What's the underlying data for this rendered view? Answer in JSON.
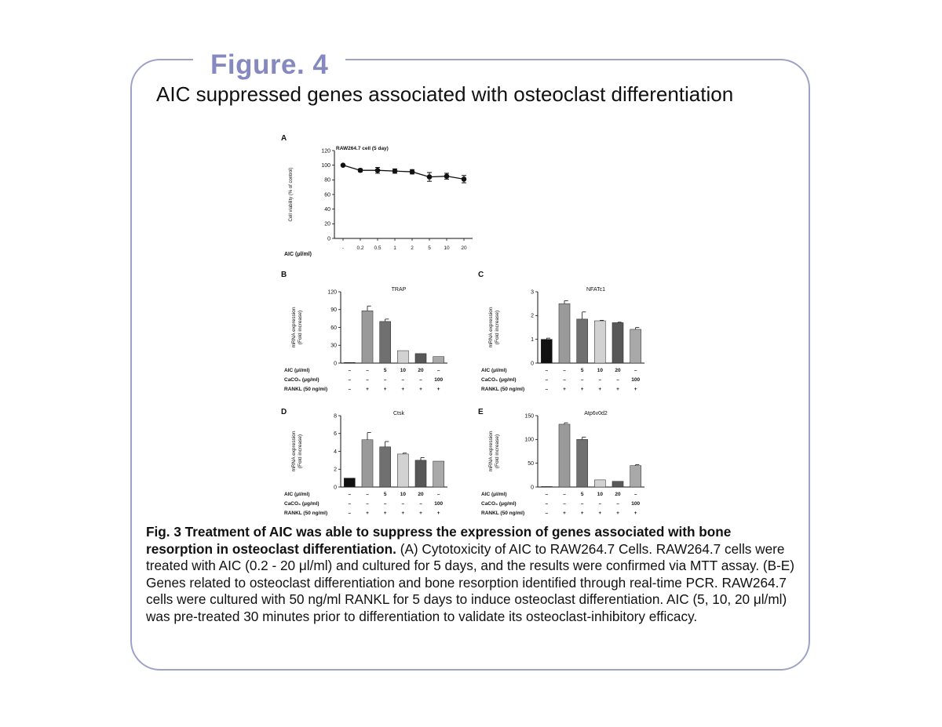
{
  "figure_label": "Figure. 4",
  "slide_title": "AIC suppressed genes associated with osteoclast differentiation",
  "caption": {
    "bold": "Fig. 3 Treatment of AIC was able to suppress the expression of genes associated with bone resorption in osteoclast differentiation.",
    "text": " (A) Cytotoxicity of AIC to RAW264.7 Cells. RAW264.7 cells were treated with AIC (0.2 - 20 μl/ml) and cultured for 5 days, and the results were confirmed via MTT assay. (B-E) Genes related to osteoclast differentiation and bone resorption identified through real-time PCR. RAW264.7 cells were cultured with 50 ng/ml RANKL for 5 days to induce osteoclast differentiation. AIC (5, 10, 20 μl/ml) was pre-treated 30 minutes prior to differentiation to validate its osteoclast-inhibitory efficacy."
  },
  "colors": {
    "frame": "#9da3c8",
    "figure_label": "#8589c0",
    "bar_fills": [
      "#111111",
      "#9a9a9a",
      "#707070",
      "#d2d2d2",
      "#585858",
      "#a9a9a9"
    ]
  },
  "chart_data": [
    {
      "panel": "A",
      "type": "line",
      "title": "RAW264.7 cell (5 day)",
      "ylabel": "Cell viability (% of control)",
      "xlabel": "AIC (μl/ml)",
      "categories": [
        "-",
        "0.2",
        "0.5",
        "1",
        "2",
        "5",
        "10",
        "20"
      ],
      "values": [
        100,
        93,
        93,
        92,
        91,
        84,
        85,
        81
      ],
      "errors": [
        0,
        2,
        4,
        3,
        3,
        6,
        4,
        5
      ],
      "ylim": [
        0,
        120
      ],
      "yticks": [
        0,
        20,
        40,
        60,
        80,
        100,
        120
      ]
    },
    {
      "panel": "B",
      "type": "bar",
      "title": "TRAP",
      "ylabel": [
        "mRNA expression",
        "(Fold increase)"
      ],
      "ylim": [
        0,
        120
      ],
      "yticks": [
        0,
        30,
        60,
        90,
        120
      ],
      "values": [
        1,
        88,
        70,
        21,
        16,
        11
      ],
      "errors": [
        0,
        8,
        4,
        0,
        0,
        0
      ],
      "rows": [
        {
          "label": "AIC (μl/ml)",
          "values": [
            "–",
            "–",
            "5",
            "10",
            "20",
            "–"
          ]
        },
        {
          "label": "CaCO₃ (μg/ml)",
          "values": [
            "–",
            "–",
            "–",
            "–",
            "–",
            "100"
          ]
        },
        {
          "label": "RANKL (50 ng/ml)",
          "values": [
            "–",
            "+",
            "+",
            "+",
            "+",
            "+"
          ]
        }
      ]
    },
    {
      "panel": "C",
      "type": "bar",
      "title": "NFATc1",
      "ylabel": [
        "mRNA expression",
        "(Fold increase)"
      ],
      "ylim": [
        0,
        3
      ],
      "yticks": [
        0,
        1,
        2,
        3
      ],
      "values": [
        1.0,
        2.5,
        1.85,
        1.78,
        1.7,
        1.42
      ],
      "errors": [
        0.05,
        0.12,
        0.3,
        0.02,
        0.02,
        0.08
      ],
      "rows": [
        {
          "label": "AIC (μl/ml)",
          "values": [
            "–",
            "–",
            "5",
            "10",
            "20",
            "–"
          ]
        },
        {
          "label": "CaCO₃ (μg/ml)",
          "values": [
            "–",
            "–",
            "–",
            "–",
            "–",
            "100"
          ]
        },
        {
          "label": "RANKL (50 ng/ml)",
          "values": [
            "–",
            "+",
            "+",
            "+",
            "+",
            "+"
          ]
        }
      ]
    },
    {
      "panel": "D",
      "type": "bar",
      "title": "Ctsk",
      "ylabel": [
        "mRNA expression",
        "(Fold increase)"
      ],
      "ylim": [
        0,
        8
      ],
      "yticks": [
        0,
        2,
        4,
        6,
        8
      ],
      "values": [
        1.0,
        5.3,
        4.5,
        3.7,
        3.0,
        2.9
      ],
      "errors": [
        0,
        0.8,
        0.6,
        0.1,
        0.3,
        0
      ],
      "rows": [
        {
          "label": "AIC (μl/ml)",
          "values": [
            "–",
            "–",
            "5",
            "10",
            "20",
            "–"
          ]
        },
        {
          "label": "CaCO₃ (μg/ml)",
          "values": [
            "–",
            "–",
            "–",
            "–",
            "–",
            "100"
          ]
        },
        {
          "label": "RANKL (50 ng/ml)",
          "values": [
            "–",
            "+",
            "+",
            "+",
            "+",
            "+"
          ]
        }
      ]
    },
    {
      "panel": "E",
      "type": "bar",
      "title": "Atp6v0d2",
      "ylabel": [
        "mRNA expression",
        "(Fold increase)"
      ],
      "ylim": [
        0,
        150
      ],
      "yticks": [
        0,
        50,
        100,
        150
      ],
      "values": [
        0,
        132,
        100,
        15,
        12,
        45
      ],
      "errors": [
        0,
        3,
        5,
        0,
        0,
        2
      ],
      "rows": [
        {
          "label": "AIC (μl/ml)",
          "values": [
            "–",
            "–",
            "5",
            "10",
            "20",
            "–"
          ]
        },
        {
          "label": "CaCO₃ (μg/ml)",
          "values": [
            "–",
            "–",
            "–",
            "–",
            "–",
            "100"
          ]
        },
        {
          "label": "RANKL (50 ng/ml)",
          "values": [
            "–",
            "+",
            "+",
            "+",
            "+",
            "+"
          ]
        }
      ]
    }
  ]
}
